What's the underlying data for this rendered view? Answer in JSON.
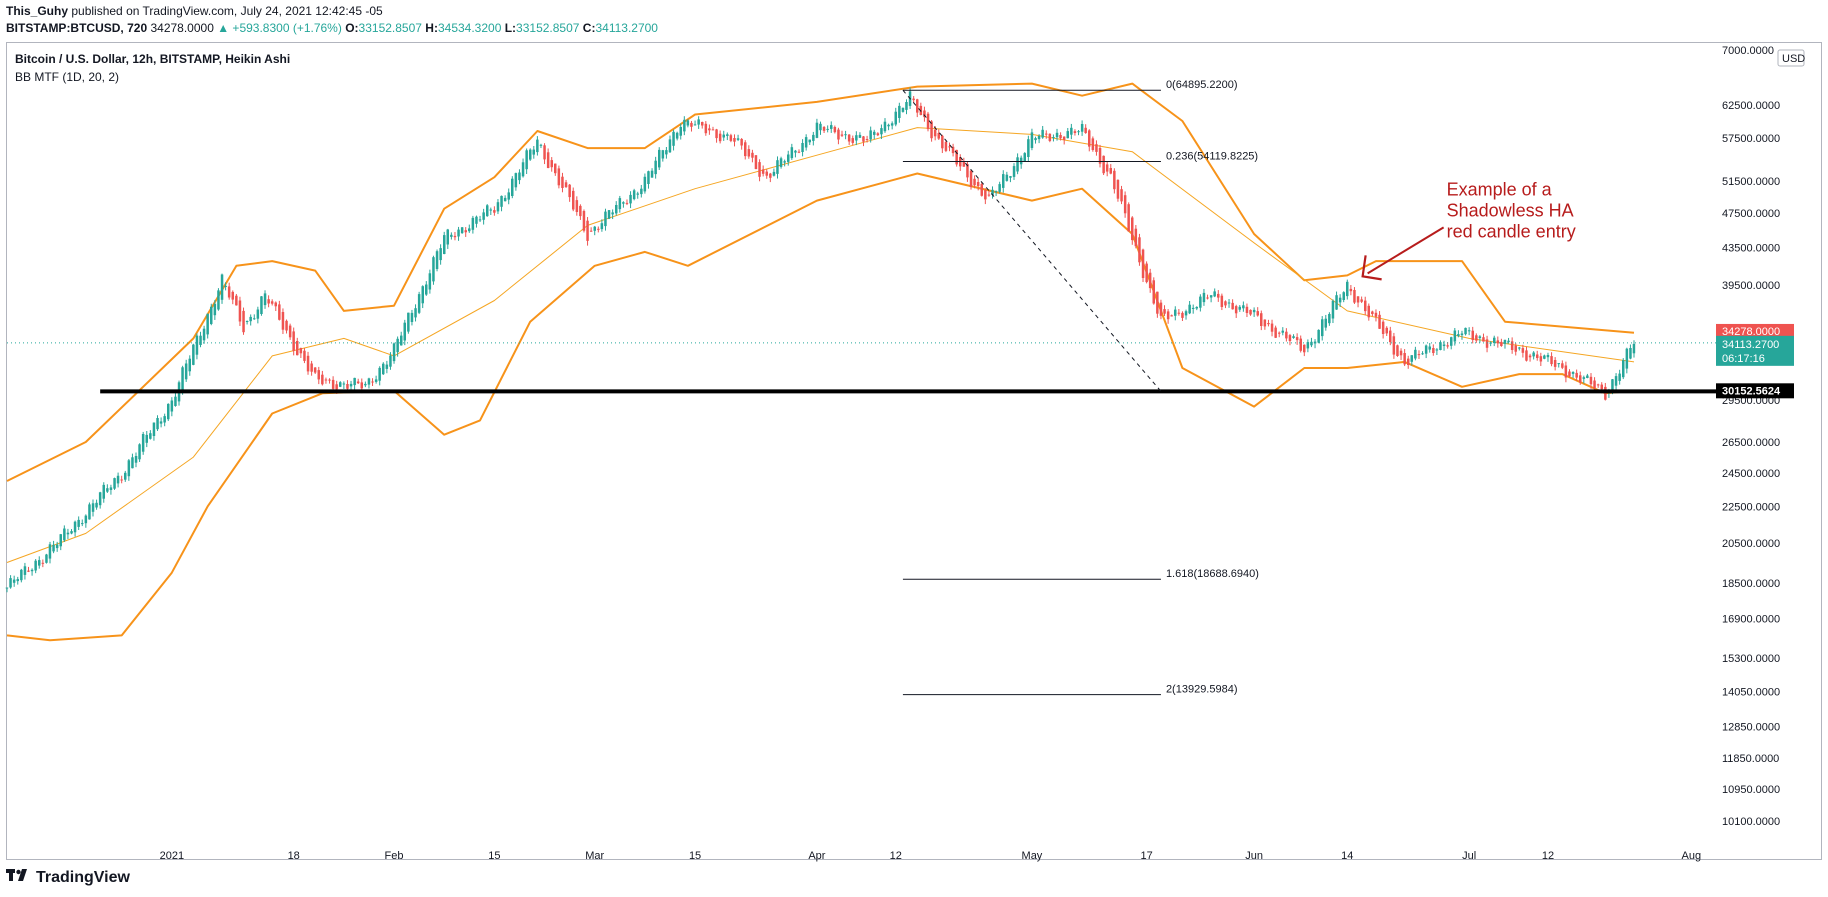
{
  "header": {
    "author": "This_Guhy",
    "published": "published on TradingView.com, July 24, 2021 12:42:45 -05",
    "symbol": "BITSTAMP:BTCUSD, 720",
    "last": "34278.0000",
    "change": "▲ +593.8300 (+1.76%)",
    "o_label": "O:",
    "o_value": "33152.8507",
    "h_label": "H:",
    "h_value": "34534.3200",
    "l_label": "L:",
    "l_value": "33152.8507",
    "c_label": "C:",
    "c_value": "34113.2700"
  },
  "footer": {
    "brand": "TradingView",
    "logo_icon": "tradingview-logo-icon"
  },
  "colors": {
    "up": "#26a69a",
    "down": "#ef5350",
    "band": "#f7931a",
    "basis": "#f5a623",
    "support": "#000000",
    "annotation": "#b71c1c",
    "axis_text": "#131722"
  },
  "chart_data": {
    "type": "candlestick",
    "title": "Bitcoin / U.S. Dollar, 12h, BITSTAMP, Heikin Ashi",
    "indicator": "BB MTF (1D, 20, 2)",
    "currency_badge": "USD",
    "y_scale": "log",
    "ylim": [
      9500,
      73000
    ],
    "xlim": [
      "2020-12-09",
      "2021-08-05"
    ],
    "y_ticks": [
      "7000.0000",
      "62500.0000",
      "57500.0000",
      "51500.0000",
      "47500.0000",
      "43500.0000",
      "39500.0000",
      "29500.0000",
      "26500.0000",
      "24500.0000",
      "22500.0000",
      "20500.0000",
      "18500.0000",
      "16900.0000",
      "15300.0000",
      "14050.0000",
      "12850.0000",
      "11850.0000",
      "10950.0000",
      "10100.0000"
    ],
    "x_ticks": [
      {
        "label": "2021",
        "date": "2021-01-01"
      },
      {
        "label": "18",
        "date": "2021-01-18"
      },
      {
        "label": "Feb",
        "date": "2021-02-01"
      },
      {
        "label": "15",
        "date": "2021-02-15"
      },
      {
        "label": "Mar",
        "date": "2021-03-01"
      },
      {
        "label": "15",
        "date": "2021-03-15"
      },
      {
        "label": "Apr",
        "date": "2021-04-01"
      },
      {
        "label": "12",
        "date": "2021-04-12"
      },
      {
        "label": "May",
        "date": "2021-05-01"
      },
      {
        "label": "17",
        "date": "2021-05-17"
      },
      {
        "label": "Jun",
        "date": "2021-06-01"
      },
      {
        "label": "14",
        "date": "2021-06-14"
      },
      {
        "label": "Jul",
        "date": "2021-07-01"
      },
      {
        "label": "12",
        "date": "2021-07-12"
      },
      {
        "label": "Aug",
        "date": "2021-08-01"
      }
    ],
    "price_labels": {
      "last": {
        "value": "34278.0000",
        "price": 34278,
        "color": "#ef5350"
      },
      "close": {
        "value": "34113.2700",
        "countdown": "06:17:16",
        "price": 34113.27,
        "color": "#26a69a"
      },
      "support": {
        "value": "30152.5624",
        "price": 30152.5624,
        "color": "#000000"
      }
    },
    "support_line": {
      "price": 30152.5624,
      "from": "2020-12-22",
      "to": "2021-08-05"
    },
    "fib_levels": [
      {
        "label": "0(64895.2200)",
        "price": 64895.22
      },
      {
        "label": "0.236(54119.8225)",
        "price": 54119.8225
      },
      {
        "label": "1.618(18688.6940)",
        "price": 18688.694
      },
      {
        "label": "2(13929.5984)",
        "price": 13929.5984
      }
    ],
    "fib_range": {
      "from": "2021-04-13",
      "to": "2021-05-19",
      "start_price": 64895.22,
      "end_price": 30152.5624
    },
    "annotation": {
      "text": [
        "Example of a",
        "Shadowless HA",
        "red candle entry"
      ],
      "arrow_date": "2021-06-16",
      "arrow_price": 40300
    },
    "series": [
      {
        "name": "price",
        "key_points": [
          [
            "2020-12-09",
            18300
          ],
          [
            "2020-12-16",
            20500
          ],
          [
            "2020-12-25",
            24500
          ],
          [
            "2021-01-01",
            29500
          ],
          [
            "2021-01-08",
            40000
          ],
          [
            "2021-01-11",
            35500
          ],
          [
            "2021-01-14",
            38500
          ],
          [
            "2021-01-21",
            31000
          ],
          [
            "2021-01-28",
            30500
          ],
          [
            "2021-02-01",
            33500
          ],
          [
            "2021-02-08",
            44500
          ],
          [
            "2021-02-15",
            48000
          ],
          [
            "2021-02-21",
            57000
          ],
          [
            "2021-02-28",
            45000
          ],
          [
            "2021-03-08",
            51500
          ],
          [
            "2021-03-13",
            60000
          ],
          [
            "2021-03-20",
            57500
          ],
          [
            "2021-03-25",
            52000
          ],
          [
            "2021-04-01",
            59000
          ],
          [
            "2021-04-08",
            57000
          ],
          [
            "2021-04-14",
            63500
          ],
          [
            "2021-04-18",
            57000
          ],
          [
            "2021-04-25",
            49000
          ],
          [
            "2021-05-01",
            57500
          ],
          [
            "2021-05-08",
            58500
          ],
          [
            "2021-05-12",
            52000
          ],
          [
            "2021-05-19",
            36000
          ],
          [
            "2021-05-26",
            38500
          ],
          [
            "2021-06-01",
            36500
          ],
          [
            "2021-06-08",
            33500
          ],
          [
            "2021-06-14",
            39500
          ],
          [
            "2021-06-22",
            32500
          ],
          [
            "2021-06-30",
            35000
          ],
          [
            "2021-07-08",
            33500
          ],
          [
            "2021-07-14",
            32000
          ],
          [
            "2021-07-20",
            30000
          ],
          [
            "2021-07-24",
            34113
          ]
        ]
      },
      {
        "name": "upper",
        "points": [
          [
            "2020-12-09",
            24000
          ],
          [
            "2020-12-20",
            26500
          ],
          [
            "2021-01-04",
            34500
          ],
          [
            "2021-01-10",
            41500
          ],
          [
            "2021-01-15",
            42000
          ],
          [
            "2021-01-21",
            41000
          ],
          [
            "2021-01-25",
            37000
          ],
          [
            "2021-02-01",
            37500
          ],
          [
            "2021-02-08",
            48000
          ],
          [
            "2021-02-15",
            52000
          ],
          [
            "2021-02-21",
            58500
          ],
          [
            "2021-02-28",
            56000
          ],
          [
            "2021-03-08",
            56000
          ],
          [
            "2021-03-15",
            61000
          ],
          [
            "2021-04-01",
            63000
          ],
          [
            "2021-04-15",
            65500
          ],
          [
            "2021-05-01",
            66000
          ],
          [
            "2021-05-08",
            64000
          ],
          [
            "2021-05-15",
            66000
          ],
          [
            "2021-05-22",
            60000
          ],
          [
            "2021-06-01",
            45000
          ],
          [
            "2021-06-08",
            40000
          ],
          [
            "2021-06-14",
            40500
          ],
          [
            "2021-06-18",
            42000
          ],
          [
            "2021-06-30",
            42000
          ],
          [
            "2021-07-06",
            36000
          ],
          [
            "2021-07-15",
            35500
          ],
          [
            "2021-07-24",
            35000
          ]
        ]
      },
      {
        "name": "basis",
        "points": [
          [
            "2020-12-09",
            19500
          ],
          [
            "2020-12-20",
            21000
          ],
          [
            "2021-01-04",
            25500
          ],
          [
            "2021-01-15",
            33000
          ],
          [
            "2021-01-25",
            34500
          ],
          [
            "2021-02-01",
            33000
          ],
          [
            "2021-02-15",
            38000
          ],
          [
            "2021-02-28",
            46000
          ],
          [
            "2021-03-15",
            50500
          ],
          [
            "2021-04-01",
            55000
          ],
          [
            "2021-04-15",
            59000
          ],
          [
            "2021-05-01",
            58000
          ],
          [
            "2021-05-15",
            55500
          ],
          [
            "2021-06-01",
            44000
          ],
          [
            "2021-06-14",
            37000
          ],
          [
            "2021-07-01",
            34500
          ],
          [
            "2021-07-24",
            32500
          ]
        ]
      },
      {
        "name": "lower",
        "points": [
          [
            "2020-12-09",
            16200
          ],
          [
            "2020-12-15",
            16000
          ],
          [
            "2020-12-25",
            16200
          ],
          [
            "2021-01-01",
            19000
          ],
          [
            "2021-01-06",
            22500
          ],
          [
            "2021-01-15",
            28500
          ],
          [
            "2021-01-22",
            30000
          ],
          [
            "2021-02-01",
            30200
          ],
          [
            "2021-02-08",
            27000
          ],
          [
            "2021-02-13",
            28000
          ],
          [
            "2021-02-20",
            36000
          ],
          [
            "2021-03-01",
            41500
          ],
          [
            "2021-03-08",
            43000
          ],
          [
            "2021-03-14",
            41500
          ],
          [
            "2021-04-01",
            49000
          ],
          [
            "2021-04-15",
            52500
          ],
          [
            "2021-05-01",
            49000
          ],
          [
            "2021-05-08",
            50500
          ],
          [
            "2021-05-15",
            45000
          ],
          [
            "2021-05-22",
            32000
          ],
          [
            "2021-06-01",
            29000
          ],
          [
            "2021-06-08",
            32000
          ],
          [
            "2021-06-14",
            32000
          ],
          [
            "2021-06-22",
            32500
          ],
          [
            "2021-06-30",
            30500
          ],
          [
            "2021-07-08",
            31500
          ],
          [
            "2021-07-14",
            31500
          ],
          [
            "2021-07-20",
            30000
          ],
          [
            "2021-07-24",
            30200
          ]
        ]
      }
    ]
  }
}
